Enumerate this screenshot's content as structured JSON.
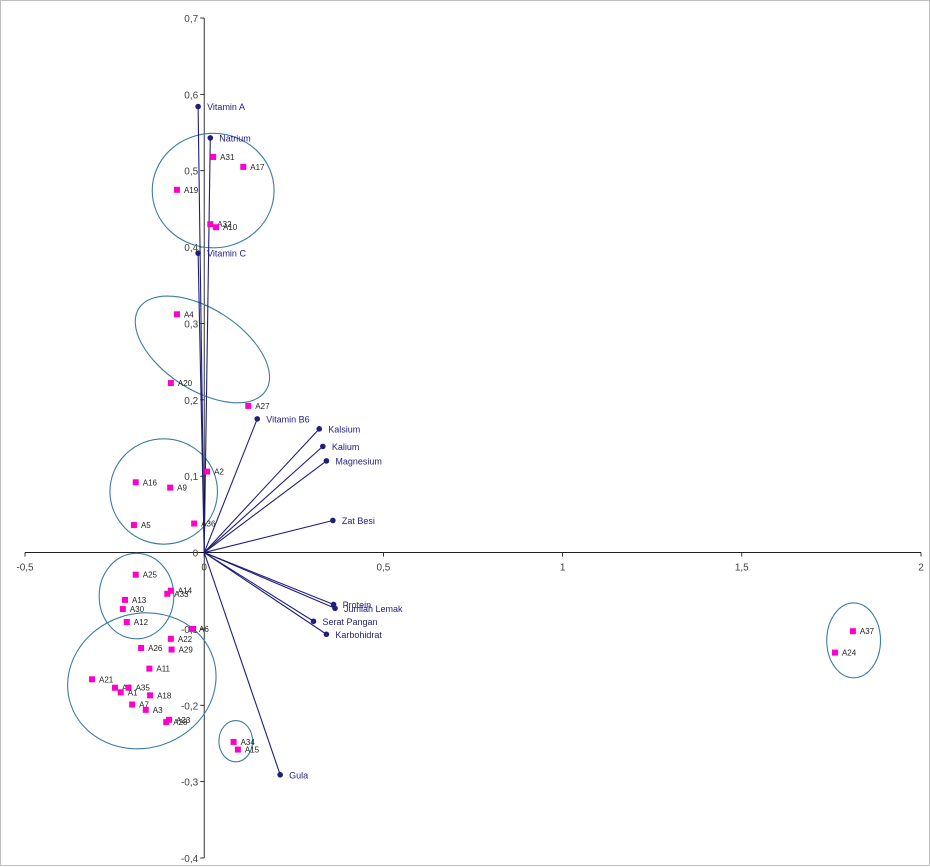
{
  "chart_data": {
    "type": "scatter",
    "title": "",
    "xlabel": "",
    "ylabel": "",
    "xlim": [
      -0.5,
      2
    ],
    "ylim": [
      -0.4,
      0.7
    ],
    "x_ticks": [
      "-0,5",
      "0",
      "0,5",
      "1",
      "1,5",
      "2"
    ],
    "y_ticks": [
      "0,7",
      "0,6",
      "0,5",
      "0,4",
      "0,3",
      "0,2",
      "0,1",
      "0",
      "-0,1",
      "-0,2",
      "-0,3",
      "-0,4"
    ],
    "grid": false,
    "colors": {
      "vector": "#1f1f7a",
      "observation": "#ff00cc",
      "ellipse": "#3a7ca8",
      "axis": "#000000"
    },
    "variables": [
      {
        "label": "Vitamin A",
        "x": -0.017,
        "y": 0.584
      },
      {
        "label": "Natrium",
        "x": 0.017,
        "y": 0.543
      },
      {
        "label": "Vitamin C",
        "x": -0.017,
        "y": 0.392
      },
      {
        "label": "Vitamin B6",
        "x": 0.148,
        "y": 0.175
      },
      {
        "label": "Kalsium",
        "x": 0.321,
        "y": 0.162
      },
      {
        "label": "Kalium",
        "x": 0.331,
        "y": 0.139
      },
      {
        "label": "Magnesium",
        "x": 0.341,
        "y": 0.12
      },
      {
        "label": "Zat Besi",
        "x": 0.359,
        "y": 0.042
      },
      {
        "label": "Protein",
        "x": 0.361,
        "y": -0.068
      },
      {
        "label": "Jumlah Lemak",
        "x": 0.365,
        "y": -0.073
      },
      {
        "label": "Serat Pangan",
        "x": 0.305,
        "y": -0.09
      },
      {
        "label": "Karbohidrat",
        "x": 0.341,
        "y": -0.107
      },
      {
        "label": "Gula",
        "x": 0.212,
        "y": -0.291
      }
    ],
    "observations": [
      {
        "label": "A31",
        "x": 0.025,
        "y": 0.518
      },
      {
        "label": "A17",
        "x": 0.109,
        "y": 0.505
      },
      {
        "label": "A19",
        "x": -0.076,
        "y": 0.475
      },
      {
        "label": "A32",
        "x": 0.017,
        "y": 0.43
      },
      {
        "label": "A10",
        "x": 0.033,
        "y": 0.426
      },
      {
        "label": "A4",
        "x": -0.076,
        "y": 0.312
      },
      {
        "label": "A20",
        "x": -0.093,
        "y": 0.222
      },
      {
        "label": "A27",
        "x": 0.123,
        "y": 0.192
      },
      {
        "label": "A2",
        "x": 0.008,
        "y": 0.106
      },
      {
        "label": "A16",
        "x": -0.191,
        "y": 0.092
      },
      {
        "label": "A9",
        "x": -0.095,
        "y": 0.085
      },
      {
        "label": "A5",
        "x": -0.196,
        "y": 0.036
      },
      {
        "label": "A36",
        "x": -0.028,
        "y": 0.038
      },
      {
        "label": "A25",
        "x": -0.191,
        "y": -0.029
      },
      {
        "label": "A14",
        "x": -0.093,
        "y": -0.05
      },
      {
        "label": "A33",
        "x": -0.103,
        "y": -0.054
      },
      {
        "label": "A13",
        "x": -0.221,
        "y": -0.062
      },
      {
        "label": "A30",
        "x": -0.227,
        "y": -0.074
      },
      {
        "label": "A12",
        "x": -0.216,
        "y": -0.091
      },
      {
        "label": "A6",
        "x": -0.034,
        "y": -0.1
      },
      {
        "label": "A22",
        "x": -0.093,
        "y": -0.113
      },
      {
        "label": "A26",
        "x": -0.176,
        "y": -0.125
      },
      {
        "label": "A29",
        "x": -0.091,
        "y": -0.127
      },
      {
        "label": "A11",
        "x": -0.153,
        "y": -0.152
      },
      {
        "label": "A21",
        "x": -0.313,
        "y": -0.166
      },
      {
        "label": "A8",
        "x": -0.249,
        "y": -0.177
      },
      {
        "label": "A35",
        "x": -0.211,
        "y": -0.177
      },
      {
        "label": "A1",
        "x": -0.233,
        "y": -0.183
      },
      {
        "label": "A18",
        "x": -0.151,
        "y": -0.187
      },
      {
        "label": "A7",
        "x": -0.201,
        "y": -0.199
      },
      {
        "label": "A3",
        "x": -0.163,
        "y": -0.206
      },
      {
        "label": "A28",
        "x": -0.106,
        "y": -0.222
      },
      {
        "label": "A23",
        "x": -0.098,
        "y": -0.219
      },
      {
        "label": "A34",
        "x": 0.082,
        "y": -0.248
      },
      {
        "label": "A15",
        "x": 0.094,
        "y": -0.258
      },
      {
        "label": "A37",
        "x": 1.81,
        "y": -0.103
      },
      {
        "label": "A24",
        "x": 1.76,
        "y": -0.131
      }
    ],
    "clusters": [
      {
        "cx": 0.025,
        "cy": 0.474,
        "rx": 0.17,
        "ry": 0.075,
        "rot": 0
      },
      {
        "cx": -0.005,
        "cy": 0.266,
        "rx": 0.211,
        "ry": 0.053,
        "rot": 33
      },
      {
        "cx": -0.113,
        "cy": 0.08,
        "rx": 0.15,
        "ry": 0.069,
        "rot": 0
      },
      {
        "cx": -0.189,
        "cy": -0.057,
        "rx": 0.104,
        "ry": 0.056,
        "rot": 0
      },
      {
        "cx": -0.174,
        "cy": -0.168,
        "rx": 0.209,
        "ry": 0.088,
        "rot": -18
      },
      {
        "cx": 0.088,
        "cy": -0.247,
        "rx": 0.047,
        "ry": 0.027,
        "rot": 0
      },
      {
        "cx": 1.812,
        "cy": -0.115,
        "rx": 0.075,
        "ry": 0.049,
        "rot": 0
      }
    ]
  }
}
